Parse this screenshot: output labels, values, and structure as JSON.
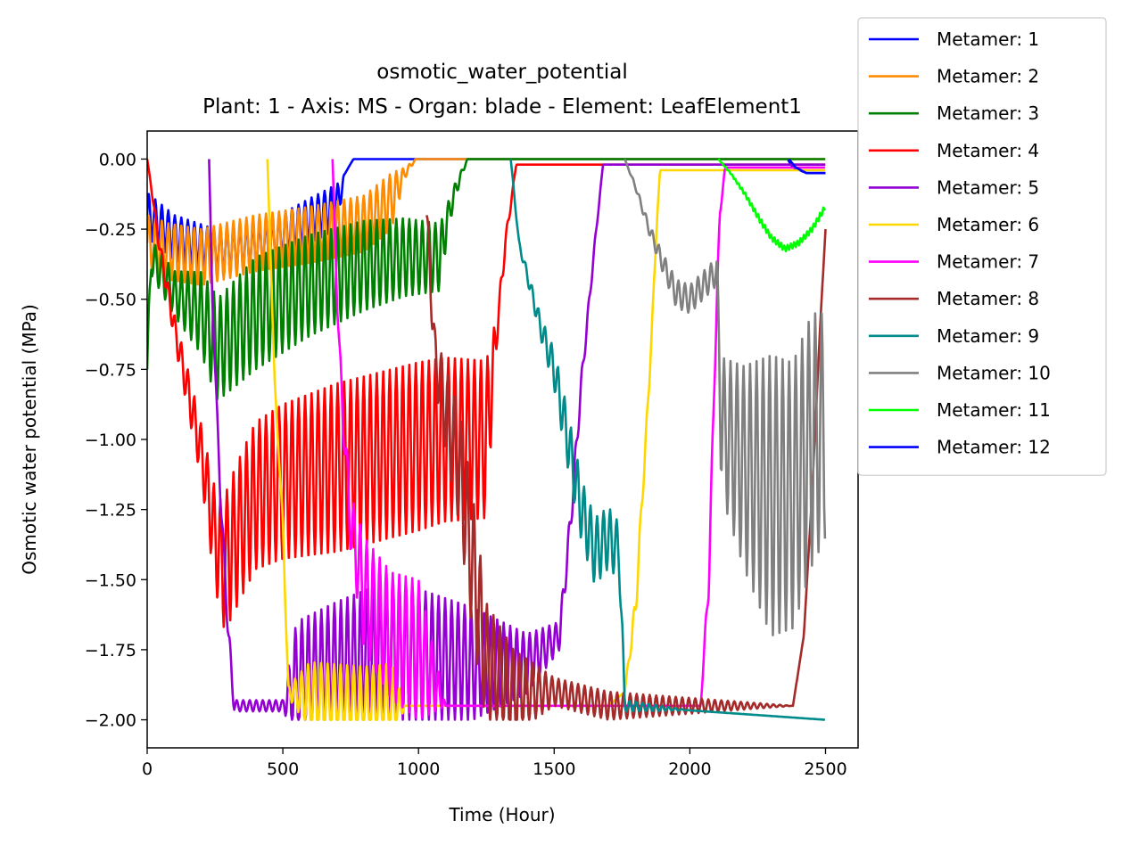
{
  "chart_data": {
    "type": "line",
    "title": "osmotic_water_potential",
    "subtitle": "Plant: 1 - Axis: MS - Organ: blade - Element: LeafElement1",
    "xlabel": "Time (Hour)",
    "ylabel": "Osmotic water potential (MPa)",
    "xlim": [
      0,
      2620
    ],
    "ylim": [
      -2.1,
      0.1
    ],
    "xticks": [
      0,
      500,
      1000,
      1500,
      2000,
      2500
    ],
    "xtick_labels": [
      "0",
      "500",
      "1000",
      "1500",
      "2000",
      "2500"
    ],
    "yticks": [
      0,
      -0.25,
      -0.5,
      -0.75,
      -1.0,
      -1.25,
      -1.5,
      -1.75,
      -2.0
    ],
    "ytick_labels": [
      "0.00",
      "−0.25",
      "−0.50",
      "−0.75",
      "−1.00",
      "−1.25",
      "−1.50",
      "−1.75",
      "−2.00"
    ],
    "grid": false,
    "legend_position": "upper-right outside",
    "series": [
      {
        "name": "Metamer: 1",
        "color": "#0000ff",
        "kind": "envelope",
        "start": 0,
        "end": 2500,
        "keys": [
          [
            0,
            -0.2
          ],
          [
            100,
            -0.28
          ],
          [
            250,
            -0.33
          ],
          [
            450,
            -0.3
          ],
          [
            600,
            -0.22
          ],
          [
            700,
            -0.17
          ],
          [
            730,
            -0.05
          ],
          [
            760,
            0
          ],
          [
            2360,
            0
          ],
          [
            2380,
            -0.03
          ],
          [
            2430,
            -0.05
          ],
          [
            2500,
            -0.05
          ]
        ],
        "amp": [
          [
            0,
            0.08
          ],
          [
            700,
            0.08
          ],
          [
            730,
            0
          ],
          [
            2500,
            0
          ]
        ],
        "period": 24
      },
      {
        "name": "Metamer: 2",
        "color": "#ff8c00",
        "kind": "envelope",
        "start": 0,
        "end": 2500,
        "keys": [
          [
            0,
            -0.3
          ],
          [
            80,
            -0.33
          ],
          [
            200,
            -0.35
          ],
          [
            400,
            -0.3
          ],
          [
            600,
            -0.27
          ],
          [
            800,
            -0.23
          ],
          [
            900,
            -0.15
          ],
          [
            950,
            -0.05
          ],
          [
            990,
            0
          ],
          [
            2500,
            0
          ]
        ],
        "amp": [
          [
            0,
            0.1
          ],
          [
            900,
            0.1
          ],
          [
            950,
            0.02
          ],
          [
            990,
            0
          ],
          [
            2500,
            0
          ]
        ],
        "period": 24
      },
      {
        "name": "Metamer: 3",
        "color": "#008000",
        "kind": "envelope",
        "start": 0,
        "end": 2500,
        "keys": [
          [
            0,
            -0.75
          ],
          [
            15,
            -0.35
          ],
          [
            100,
            -0.48
          ],
          [
            200,
            -0.55
          ],
          [
            260,
            -0.68
          ],
          [
            400,
            -0.55
          ],
          [
            600,
            -0.45
          ],
          [
            800,
            -0.38
          ],
          [
            950,
            -0.35
          ],
          [
            1080,
            -0.35
          ],
          [
            1110,
            -0.2
          ],
          [
            1140,
            -0.1
          ],
          [
            1180,
            0
          ],
          [
            2500,
            0
          ]
        ],
        "amp": [
          [
            0,
            0.06
          ],
          [
            100,
            0.08
          ],
          [
            250,
            0.18
          ],
          [
            400,
            0.2
          ],
          [
            800,
            0.16
          ],
          [
            1080,
            0.12
          ],
          [
            1110,
            0.05
          ],
          [
            1180,
            0
          ],
          [
            2500,
            0
          ]
        ],
        "period": 24
      },
      {
        "name": "Metamer: 4",
        "color": "#ff0000",
        "kind": "envelope",
        "start": 0,
        "end": 2500,
        "keys": [
          [
            0,
            0
          ],
          [
            15,
            -0.1
          ],
          [
            40,
            -0.28
          ],
          [
            100,
            -0.6
          ],
          [
            200,
            -1.05
          ],
          [
            250,
            -1.35
          ],
          [
            280,
            -1.45
          ],
          [
            350,
            -1.3
          ],
          [
            400,
            -1.2
          ],
          [
            500,
            -1.15
          ],
          [
            700,
            -1.1
          ],
          [
            900,
            -1.05
          ],
          [
            1100,
            -1.0
          ],
          [
            1250,
            -1.0
          ],
          [
            1290,
            -0.6
          ],
          [
            1320,
            -0.3
          ],
          [
            1360,
            -0.02
          ],
          [
            2500,
            -0.02
          ]
        ],
        "amp": [
          [
            0,
            0
          ],
          [
            80,
            0.04
          ],
          [
            200,
            0.1
          ],
          [
            300,
            0.25
          ],
          [
            700,
            0.3
          ],
          [
            1000,
            0.3
          ],
          [
            1250,
            0.28
          ],
          [
            1290,
            0.05
          ],
          [
            1360,
            0
          ],
          [
            2500,
            0
          ]
        ],
        "period": 24
      },
      {
        "name": "Metamer: 5",
        "color": "#9400d3",
        "kind": "envelope",
        "start": 228,
        "end": 2500,
        "keys": [
          [
            228,
            0
          ],
          [
            240,
            -0.5
          ],
          [
            270,
            -1.2
          ],
          [
            300,
            -1.7
          ],
          [
            320,
            -1.95
          ],
          [
            500,
            -1.95
          ],
          [
            550,
            -1.85
          ],
          [
            700,
            -1.8
          ],
          [
            900,
            -1.75
          ],
          [
            1200,
            -1.8
          ],
          [
            1400,
            -1.8
          ],
          [
            1520,
            -1.7
          ],
          [
            1560,
            -1.3
          ],
          [
            1600,
            -0.8
          ],
          [
            1650,
            -0.3
          ],
          [
            1680,
            -0.02
          ],
          [
            2500,
            -0.02
          ]
        ],
        "amp": [
          [
            228,
            0
          ],
          [
            300,
            0.05
          ],
          [
            320,
            0.02
          ],
          [
            500,
            0.02
          ],
          [
            550,
            0.2
          ],
          [
            900,
            0.25
          ],
          [
            1200,
            0.2
          ],
          [
            1520,
            0.05
          ],
          [
            1560,
            0.05
          ],
          [
            1680,
            0
          ],
          [
            2500,
            0
          ]
        ],
        "period": 24
      },
      {
        "name": "Metamer: 6",
        "color": "#ffd700",
        "kind": "envelope",
        "start": 443,
        "end": 2500,
        "keys": [
          [
            443,
            0
          ],
          [
            470,
            -0.8
          ],
          [
            500,
            -1.3
          ],
          [
            520,
            -1.9
          ],
          [
            800,
            -1.95
          ],
          [
            950,
            -1.95
          ],
          [
            1250,
            -1.95
          ],
          [
            1700,
            -1.95
          ],
          [
            1760,
            -1.9
          ],
          [
            1800,
            -1.6
          ],
          [
            1850,
            -0.8
          ],
          [
            1880,
            -0.2
          ],
          [
            1890,
            -0.04
          ],
          [
            2500,
            -0.04
          ]
        ],
        "amp": [
          [
            443,
            0
          ],
          [
            520,
            0.02
          ],
          [
            600,
            0.12
          ],
          [
            900,
            0.15
          ],
          [
            950,
            0
          ],
          [
            1760,
            0
          ],
          [
            1800,
            0.05
          ],
          [
            1880,
            0
          ],
          [
            2500,
            0
          ]
        ],
        "period": 24
      },
      {
        "name": "Metamer: 7",
        "color": "#ff00ff",
        "kind": "envelope",
        "start": 683,
        "end": 2500,
        "keys": [
          [
            683,
            0
          ],
          [
            700,
            -0.5
          ],
          [
            720,
            -0.9
          ],
          [
            750,
            -1.3
          ],
          [
            800,
            -1.55
          ],
          [
            900,
            -1.7
          ],
          [
            1000,
            -1.75
          ],
          [
            1050,
            -1.85
          ],
          [
            1100,
            -1.95
          ],
          [
            1200,
            -1.95
          ],
          [
            2040,
            -1.95
          ],
          [
            2070,
            -1.5
          ],
          [
            2090,
            -0.8
          ],
          [
            2110,
            -0.2
          ],
          [
            2130,
            -0.03
          ],
          [
            2500,
            -0.03
          ]
        ],
        "amp": [
          [
            683,
            0
          ],
          [
            720,
            0.05
          ],
          [
            800,
            0.2
          ],
          [
            1000,
            0.25
          ],
          [
            1100,
            0
          ],
          [
            2040,
            0
          ],
          [
            2070,
            0.05
          ],
          [
            2130,
            0
          ],
          [
            2500,
            0
          ]
        ],
        "period": 24
      },
      {
        "name": "Metamer: 8",
        "color": "#a52a2a",
        "kind": "envelope",
        "start": 1030,
        "end": 2500,
        "keys": [
          [
            1030,
            -0.2
          ],
          [
            1060,
            -0.7
          ],
          [
            1100,
            -0.9
          ],
          [
            1150,
            -1.1
          ],
          [
            1200,
            -1.45
          ],
          [
            1250,
            -1.8
          ],
          [
            1350,
            -1.9
          ],
          [
            1500,
            -1.9
          ],
          [
            1700,
            -1.95
          ],
          [
            1900,
            -1.95
          ],
          [
            2380,
            -1.95
          ],
          [
            2420,
            -1.7
          ],
          [
            2450,
            -1.2
          ],
          [
            2480,
            -0.6
          ],
          [
            2500,
            -0.25
          ]
        ],
        "amp": [
          [
            1030,
            0.05
          ],
          [
            1100,
            0.15
          ],
          [
            1200,
            0.25
          ],
          [
            1350,
            0.15
          ],
          [
            1500,
            0.05
          ],
          [
            1700,
            0.05
          ],
          [
            2380,
            0
          ],
          [
            2500,
            0
          ]
        ],
        "period": 24
      },
      {
        "name": "Metamer: 9",
        "color": "#008b8b",
        "kind": "envelope",
        "start": 1340,
        "end": 2500,
        "keys": [
          [
            1340,
            0
          ],
          [
            1370,
            -0.3
          ],
          [
            1450,
            -0.6
          ],
          [
            1500,
            -0.75
          ],
          [
            1550,
            -1.0
          ],
          [
            1600,
            -1.25
          ],
          [
            1650,
            -1.4
          ],
          [
            1700,
            -1.35
          ],
          [
            1740,
            -1.4
          ],
          [
            1760,
            -1.95
          ],
          [
            2500,
            -2.0
          ]
        ],
        "amp": [
          [
            1340,
            0
          ],
          [
            1450,
            0.04
          ],
          [
            1550,
            0.1
          ],
          [
            1650,
            0.12
          ],
          [
            1740,
            0.1
          ],
          [
            1760,
            0.02
          ],
          [
            2000,
            0
          ],
          [
            2500,
            0
          ]
        ],
        "period": 24
      },
      {
        "name": "Metamer: 10",
        "color": "#808080",
        "kind": "envelope",
        "start": 1760,
        "end": 2500,
        "keys": [
          [
            1760,
            0
          ],
          [
            1800,
            -0.1
          ],
          [
            1850,
            -0.25
          ],
          [
            1900,
            -0.37
          ],
          [
            1950,
            -0.48
          ],
          [
            2000,
            -0.5
          ],
          [
            2080,
            -0.42
          ],
          [
            2100,
            -0.4
          ],
          [
            2115,
            -0.95
          ],
          [
            2200,
            -1.1
          ],
          [
            2300,
            -1.2
          ],
          [
            2380,
            -1.2
          ],
          [
            2450,
            -1.0
          ],
          [
            2500,
            -0.95
          ]
        ],
        "amp": [
          [
            1760,
            0
          ],
          [
            1850,
            0.02
          ],
          [
            1950,
            0.05
          ],
          [
            2100,
            0.05
          ],
          [
            2120,
            0.25
          ],
          [
            2300,
            0.5
          ],
          [
            2450,
            0.45
          ],
          [
            2500,
            0.4
          ]
        ],
        "period": 24
      },
      {
        "name": "Metamer: 11",
        "color": "#00ff00",
        "kind": "envelope",
        "start": 2105,
        "end": 2500,
        "keys": [
          [
            2105,
            0
          ],
          [
            2150,
            -0.05
          ],
          [
            2200,
            -0.12
          ],
          [
            2260,
            -0.22
          ],
          [
            2300,
            -0.28
          ],
          [
            2350,
            -0.32
          ],
          [
            2400,
            -0.3
          ],
          [
            2450,
            -0.25
          ],
          [
            2500,
            -0.17
          ]
        ],
        "amp": [
          [
            2105,
            0
          ],
          [
            2250,
            0.01
          ],
          [
            2500,
            0.01
          ]
        ],
        "period": 12
      },
      {
        "name": "Metamer: 12",
        "color": "#0000ff",
        "kind": "envelope",
        "start": 2365,
        "end": 2500,
        "keys": [
          [
            2365,
            0
          ],
          [
            2390,
            -0.03
          ],
          [
            2430,
            -0.05
          ],
          [
            2500,
            -0.05
          ]
        ],
        "amp": [
          [
            2365,
            0
          ],
          [
            2500,
            0
          ]
        ],
        "period": 24
      }
    ]
  }
}
